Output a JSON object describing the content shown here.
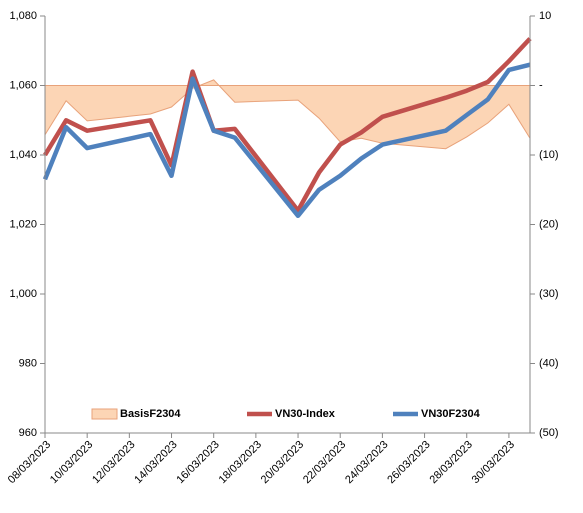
{
  "chart_data": {
    "type": "line",
    "x": [
      "08/03/2023",
      "09/03/2023",
      "10/03/2023",
      "13/03/2023",
      "14/03/2023",
      "15/03/2023",
      "16/03/2023",
      "17/03/2023",
      "20/03/2023",
      "21/03/2023",
      "22/03/2023",
      "23/03/2023",
      "24/03/2023",
      "27/03/2023",
      "28/03/2023",
      "29/03/2023",
      "30/03/2023",
      "31/03/2023"
    ],
    "xlim": [
      "08/03/2023",
      "31/03/2023"
    ],
    "xticks": [
      "08/03/2023",
      "10/03/2023",
      "12/03/2023",
      "14/03/2023",
      "16/03/2023",
      "18/03/2023",
      "20/03/2023",
      "22/03/2023",
      "24/03/2023",
      "26/03/2023",
      "28/03/2023",
      "30/03/2023"
    ],
    "ylim": [
      960,
      1080
    ],
    "yticks": [
      960,
      980,
      {
        "value": 1000,
        "label": "1,000"
      },
      {
        "value": 1020,
        "label": "1,020"
      },
      {
        "value": 1040,
        "label": "1,040"
      },
      {
        "value": 1060,
        "label": "1,060"
      },
      {
        "value": 1080,
        "label": "1,080"
      }
    ],
    "y2lim": [
      -50,
      10
    ],
    "y2ticks": [
      {
        "value": -50,
        "label": "(50)"
      },
      {
        "value": -40,
        "label": "(40)"
      },
      {
        "value": -30,
        "label": "(30)"
      },
      {
        "value": -20,
        "label": "(20)"
      },
      {
        "value": -10,
        "label": "(10)"
      },
      {
        "value": 0,
        "label": "-"
      },
      10
    ],
    "series": [
      {
        "name": "BasisF2304",
        "type": "area",
        "axis": "y2",
        "color": "#fcd5b5",
        "values": [
          -7.1,
          -2.2,
          -5.1,
          -4.1,
          -3.1,
          -0.4,
          0.8,
          -2.4,
          -2.1,
          -4.7,
          -8.1,
          -7.6,
          -8.3,
          -9.1,
          -7.4,
          -5.4,
          -2.7,
          -7.6
        ]
      },
      {
        "name": "VN30-Index",
        "color": "#c0504d",
        "values": [
          1040,
          1050,
          1047,
          1050,
          1037,
          1064,
          1047,
          1047.5,
          1024,
          1035,
          1043,
          1046.5,
          1051,
          1056.5,
          1058.5,
          1061,
          1067,
          1073.5
        ]
      },
      {
        "name": "VN30F2304",
        "color": "#4f81bd",
        "values": [
          1033,
          1048,
          1042,
          1046,
          1034,
          1062,
          1047,
          1045,
          1022.5,
          1030,
          1034,
          1039,
          1043,
          1047,
          1051.5,
          1056,
          1064.5,
          1066
        ]
      }
    ]
  }
}
